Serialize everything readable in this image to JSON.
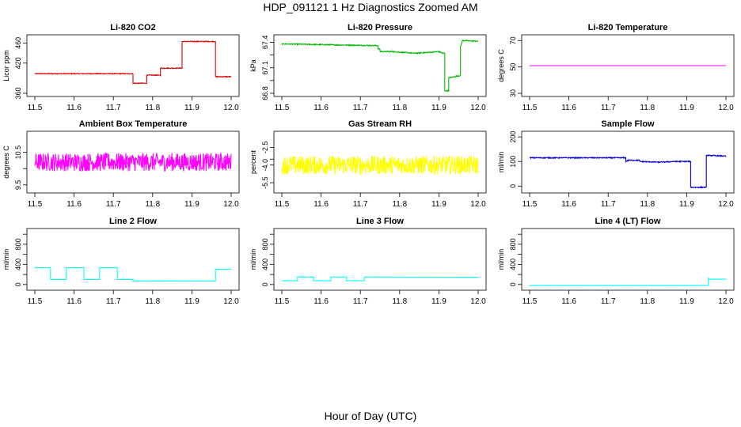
{
  "figure": {
    "title": "HDP_091121  1 Hz Diagnostics Zoomed AM",
    "xlabel": "Hour of Day (UTC)"
  },
  "chart_data": [
    {
      "type": "line",
      "title": "Li-820 CO2",
      "xlabel": "",
      "ylabel": "Licor ppm",
      "xlim": [
        11.5,
        12.0
      ],
      "ylim": [
        360,
        470
      ],
      "yticks": [
        360,
        420,
        460
      ],
      "xticks": [
        11.5,
        11.6,
        11.7,
        11.8,
        11.9,
        12.0
      ],
      "color": "#dd0000",
      "noise": 0.8,
      "grid": false,
      "series": [
        {
          "points": [
            [
              11.5,
              399
            ],
            [
              11.75,
              399
            ],
            [
              11.75,
              380
            ],
            [
              11.785,
              380
            ],
            [
              11.785,
              396
            ],
            [
              11.82,
              396
            ],
            [
              11.82,
              410
            ],
            [
              11.875,
              410
            ],
            [
              11.875,
              463
            ],
            [
              11.96,
              463
            ],
            [
              11.96,
              393
            ],
            [
              12.0,
              393
            ]
          ]
        }
      ]
    },
    {
      "type": "line",
      "title": "Li-820 Pressure",
      "xlabel": "",
      "ylabel": "kPa",
      "xlim": [
        11.5,
        12.0
      ],
      "ylim": [
        66.8,
        67.45
      ],
      "yticks": [
        66.8,
        67.1,
        67.4
      ],
      "extra_yticks": [
        67.25,
        66.95
      ],
      "xticks": [
        11.5,
        11.6,
        11.7,
        11.8,
        11.9,
        12.0
      ],
      "color": "#00bb00",
      "noise": 0.006,
      "grid": false,
      "series": [
        {
          "points": [
            [
              11.5,
              67.38
            ],
            [
              11.62,
              67.37
            ],
            [
              11.745,
              67.36
            ],
            [
              11.745,
              67.32
            ],
            [
              11.75,
              67.32
            ],
            [
              11.75,
              67.29
            ],
            [
              11.78,
              67.29
            ],
            [
              11.84,
              67.27
            ],
            [
              11.9,
              67.29
            ],
            [
              11.91,
              67.27
            ],
            [
              11.915,
              67.27
            ],
            [
              11.915,
              66.83
            ],
            [
              11.925,
              66.83
            ],
            [
              11.925,
              66.98
            ],
            [
              11.945,
              67.0
            ],
            [
              11.955,
              67.01
            ],
            [
              11.955,
              67.35
            ],
            [
              11.96,
              67.42
            ],
            [
              12.0,
              67.41
            ]
          ]
        }
      ]
    },
    {
      "type": "line",
      "title": "Li-820 Temperature",
      "xlabel": "",
      "ylabel": "degrees C",
      "xlim": [
        11.5,
        12.0
      ],
      "ylim": [
        30,
        72
      ],
      "yticks": [
        30,
        50,
        70
      ],
      "xticks": [
        11.5,
        11.6,
        11.7,
        11.8,
        11.9,
        12.0
      ],
      "color": "#ff00ff",
      "noise": 0,
      "grid": false,
      "series": [
        {
          "points": [
            [
              11.5,
              51
            ],
            [
              12.0,
              51
            ]
          ]
        }
      ]
    },
    {
      "type": "line",
      "title": "Ambient Box Temperature",
      "xlabel": "",
      "ylabel": "degrees C",
      "xlim": [
        11.5,
        12.0
      ],
      "ylim": [
        9.35,
        11.05
      ],
      "yticks": [
        9.5,
        10.5
      ],
      "extra_yticks": [
        10.0
      ],
      "xticks": [
        11.5,
        11.6,
        11.7,
        11.8,
        11.9,
        12.0
      ],
      "color": "#ff00ff",
      "noise": 0.28,
      "grid": false,
      "series": [
        {
          "points": [
            [
              11.5,
              10.2
            ],
            [
              12.0,
              10.2
            ]
          ]
        }
      ]
    },
    {
      "type": "line",
      "title": "Gas Stream RH",
      "xlabel": "",
      "ylabel": "percent",
      "xlim": [
        11.5,
        12.0
      ],
      "ylim": [
        -6.1,
        -1.4
      ],
      "yticks": [
        -5.5,
        -4.0,
        -2.5
      ],
      "extra_yticks": [
        -3.5
      ],
      "xticks": [
        11.5,
        11.6,
        11.7,
        11.8,
        11.9,
        12.0
      ],
      "color": "#ffff00",
      "noise": 0.8,
      "grid": false,
      "series": [
        {
          "points": [
            [
              11.5,
              -4.0
            ],
            [
              12.0,
              -4.0
            ]
          ]
        }
      ]
    },
    {
      "type": "line",
      "title": "Sample Flow",
      "xlabel": "",
      "ylabel": "ml/min",
      "xlim": [
        11.5,
        12.0
      ],
      "ylim": [
        -15,
        210
      ],
      "yticks": [
        0,
        100,
        200
      ],
      "xticks": [
        11.5,
        11.6,
        11.7,
        11.8,
        11.9,
        12.0
      ],
      "color": "#0000cc",
      "noise": 2,
      "grid": false,
      "series": [
        {
          "points": [
            [
              11.5,
              115
            ],
            [
              11.745,
              115
            ],
            [
              11.745,
              100
            ],
            [
              11.75,
              105
            ],
            [
              11.78,
              105
            ],
            [
              11.78,
              100
            ],
            [
              11.83,
              97
            ],
            [
              11.87,
              100
            ],
            [
              11.91,
              100
            ],
            [
              11.91,
              -5
            ],
            [
              11.95,
              -5
            ],
            [
              11.95,
              125
            ],
            [
              12.0,
              122
            ]
          ]
        }
      ]
    },
    {
      "type": "line",
      "title": "Line 2 Flow",
      "xlabel": "",
      "ylabel": "ml/min",
      "xlim": [
        11.5,
        12.0
      ],
      "ylim": [
        -50,
        1050
      ],
      "yticks": [
        0,
        400,
        800
      ],
      "extra_yticks": [
        200,
        600,
        1000
      ],
      "xticks": [
        11.5,
        11.6,
        11.7,
        11.8,
        11.9,
        12.0
      ],
      "color": "#00ffff",
      "noise": 3,
      "grid": false,
      "series": [
        {
          "points": [
            [
              11.5,
              335
            ],
            [
              11.54,
              335
            ],
            [
              11.54,
              100
            ],
            [
              11.58,
              100
            ],
            [
              11.58,
              335
            ],
            [
              11.625,
              335
            ],
            [
              11.625,
              100
            ],
            [
              11.665,
              100
            ],
            [
              11.665,
              335
            ],
            [
              11.71,
              335
            ],
            [
              11.71,
              100
            ],
            [
              11.75,
              100
            ],
            [
              11.75,
              70
            ],
            [
              11.96,
              70
            ],
            [
              11.96,
              305
            ],
            [
              12.0,
              305
            ]
          ]
        }
      ]
    },
    {
      "type": "line",
      "title": "Line 3 Flow",
      "xlabel": "",
      "ylabel": "ml/min",
      "xlim": [
        11.5,
        12.0
      ],
      "ylim": [
        -50,
        1050
      ],
      "yticks": [
        0,
        400,
        800
      ],
      "extra_yticks": [
        200,
        600,
        1000
      ],
      "xticks": [
        11.5,
        11.6,
        11.7,
        11.8,
        11.9,
        12.0
      ],
      "color": "#00ffff",
      "noise": 2,
      "grid": false,
      "series": [
        {
          "points": [
            [
              11.5,
              75
            ],
            [
              11.54,
              75
            ],
            [
              11.54,
              150
            ],
            [
              11.58,
              150
            ],
            [
              11.58,
              75
            ],
            [
              11.625,
              75
            ],
            [
              11.625,
              150
            ],
            [
              11.665,
              150
            ],
            [
              11.665,
              75
            ],
            [
              11.71,
              75
            ],
            [
              11.71,
              150
            ],
            [
              12.0,
              145
            ]
          ]
        }
      ]
    },
    {
      "type": "line",
      "title": "Line 4 (LT) Flow",
      "xlabel": "",
      "ylabel": "ml/min",
      "xlim": [
        11.5,
        12.0
      ],
      "ylim": [
        -50,
        1050
      ],
      "yticks": [
        0,
        400,
        800
      ],
      "extra_yticks": [
        200,
        600,
        1000
      ],
      "xticks": [
        11.5,
        11.6,
        11.7,
        11.8,
        11.9,
        12.0
      ],
      "color": "#00ffff",
      "noise": 2,
      "grid": false,
      "series": [
        {
          "points": [
            [
              11.5,
              -20
            ],
            [
              11.955,
              -20
            ],
            [
              11.955,
              125
            ],
            [
              11.96,
              105
            ],
            [
              12.0,
              105
            ]
          ]
        }
      ]
    }
  ]
}
